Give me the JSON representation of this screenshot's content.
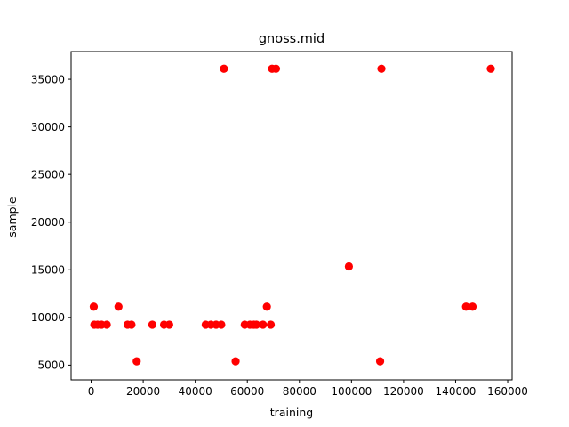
{
  "chart_data": {
    "type": "scatter",
    "title": "gnoss.mid",
    "xlabel": "training",
    "ylabel": "sample",
    "xlim": [
      -7700,
      161700
    ],
    "ylim": [
      3450,
      37900
    ],
    "xticks": [
      0,
      20000,
      40000,
      60000,
      80000,
      100000,
      120000,
      140000,
      160000
    ],
    "yticks": [
      5000,
      10000,
      15000,
      20000,
      25000,
      30000,
      35000
    ],
    "grid": false,
    "marker_color": "#ff0000",
    "points": [
      {
        "x": 1000,
        "y": 11130
      },
      {
        "x": 1200,
        "y": 9240
      },
      {
        "x": 2500,
        "y": 9240
      },
      {
        "x": 4000,
        "y": 9240
      },
      {
        "x": 6000,
        "y": 9240
      },
      {
        "x": 10500,
        "y": 11130
      },
      {
        "x": 14000,
        "y": 9240
      },
      {
        "x": 15500,
        "y": 9240
      },
      {
        "x": 17500,
        "y": 5400
      },
      {
        "x": 23500,
        "y": 9240
      },
      {
        "x": 28000,
        "y": 9240
      },
      {
        "x": 30000,
        "y": 9240
      },
      {
        "x": 44000,
        "y": 9240
      },
      {
        "x": 46000,
        "y": 9240
      },
      {
        "x": 48000,
        "y": 9240
      },
      {
        "x": 50000,
        "y": 9240
      },
      {
        "x": 51000,
        "y": 36100
      },
      {
        "x": 55500,
        "y": 5400
      },
      {
        "x": 59000,
        "y": 9240
      },
      {
        "x": 61000,
        "y": 9240
      },
      {
        "x": 62500,
        "y": 9240
      },
      {
        "x": 63500,
        "y": 9240
      },
      {
        "x": 66000,
        "y": 9240
      },
      {
        "x": 67500,
        "y": 11130
      },
      {
        "x": 69000,
        "y": 9240
      },
      {
        "x": 69500,
        "y": 36100
      },
      {
        "x": 71000,
        "y": 36100
      },
      {
        "x": 99000,
        "y": 15350
      },
      {
        "x": 111000,
        "y": 5400
      },
      {
        "x": 111500,
        "y": 36100
      },
      {
        "x": 144000,
        "y": 11130
      },
      {
        "x": 146500,
        "y": 11130
      },
      {
        "x": 153500,
        "y": 36100
      }
    ]
  }
}
